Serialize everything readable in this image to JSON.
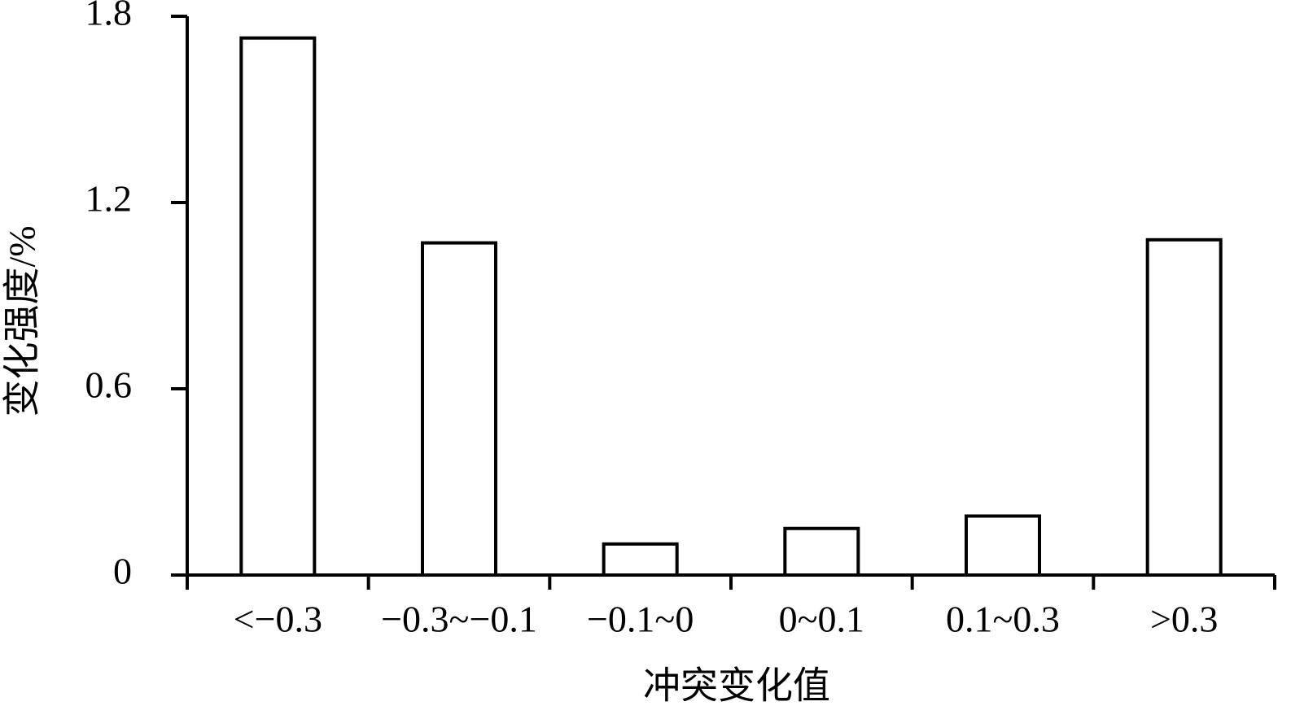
{
  "chart_data": {
    "type": "bar",
    "x_label": "冲突变化值",
    "y_label": "变化强度/%",
    "categories": [
      "<−0.3",
      "−0.3~−0.1",
      "−0.1~0",
      "0~0.1",
      "0.1~0.3",
      ">0.3"
    ],
    "values": [
      1.73,
      1.07,
      0.1,
      0.15,
      0.19,
      1.08
    ],
    "color": "#ffffff",
    "ylim": [
      0,
      1.8
    ],
    "yticks": [
      0,
      0.6,
      1.2,
      1.8
    ],
    "grid": false
  }
}
